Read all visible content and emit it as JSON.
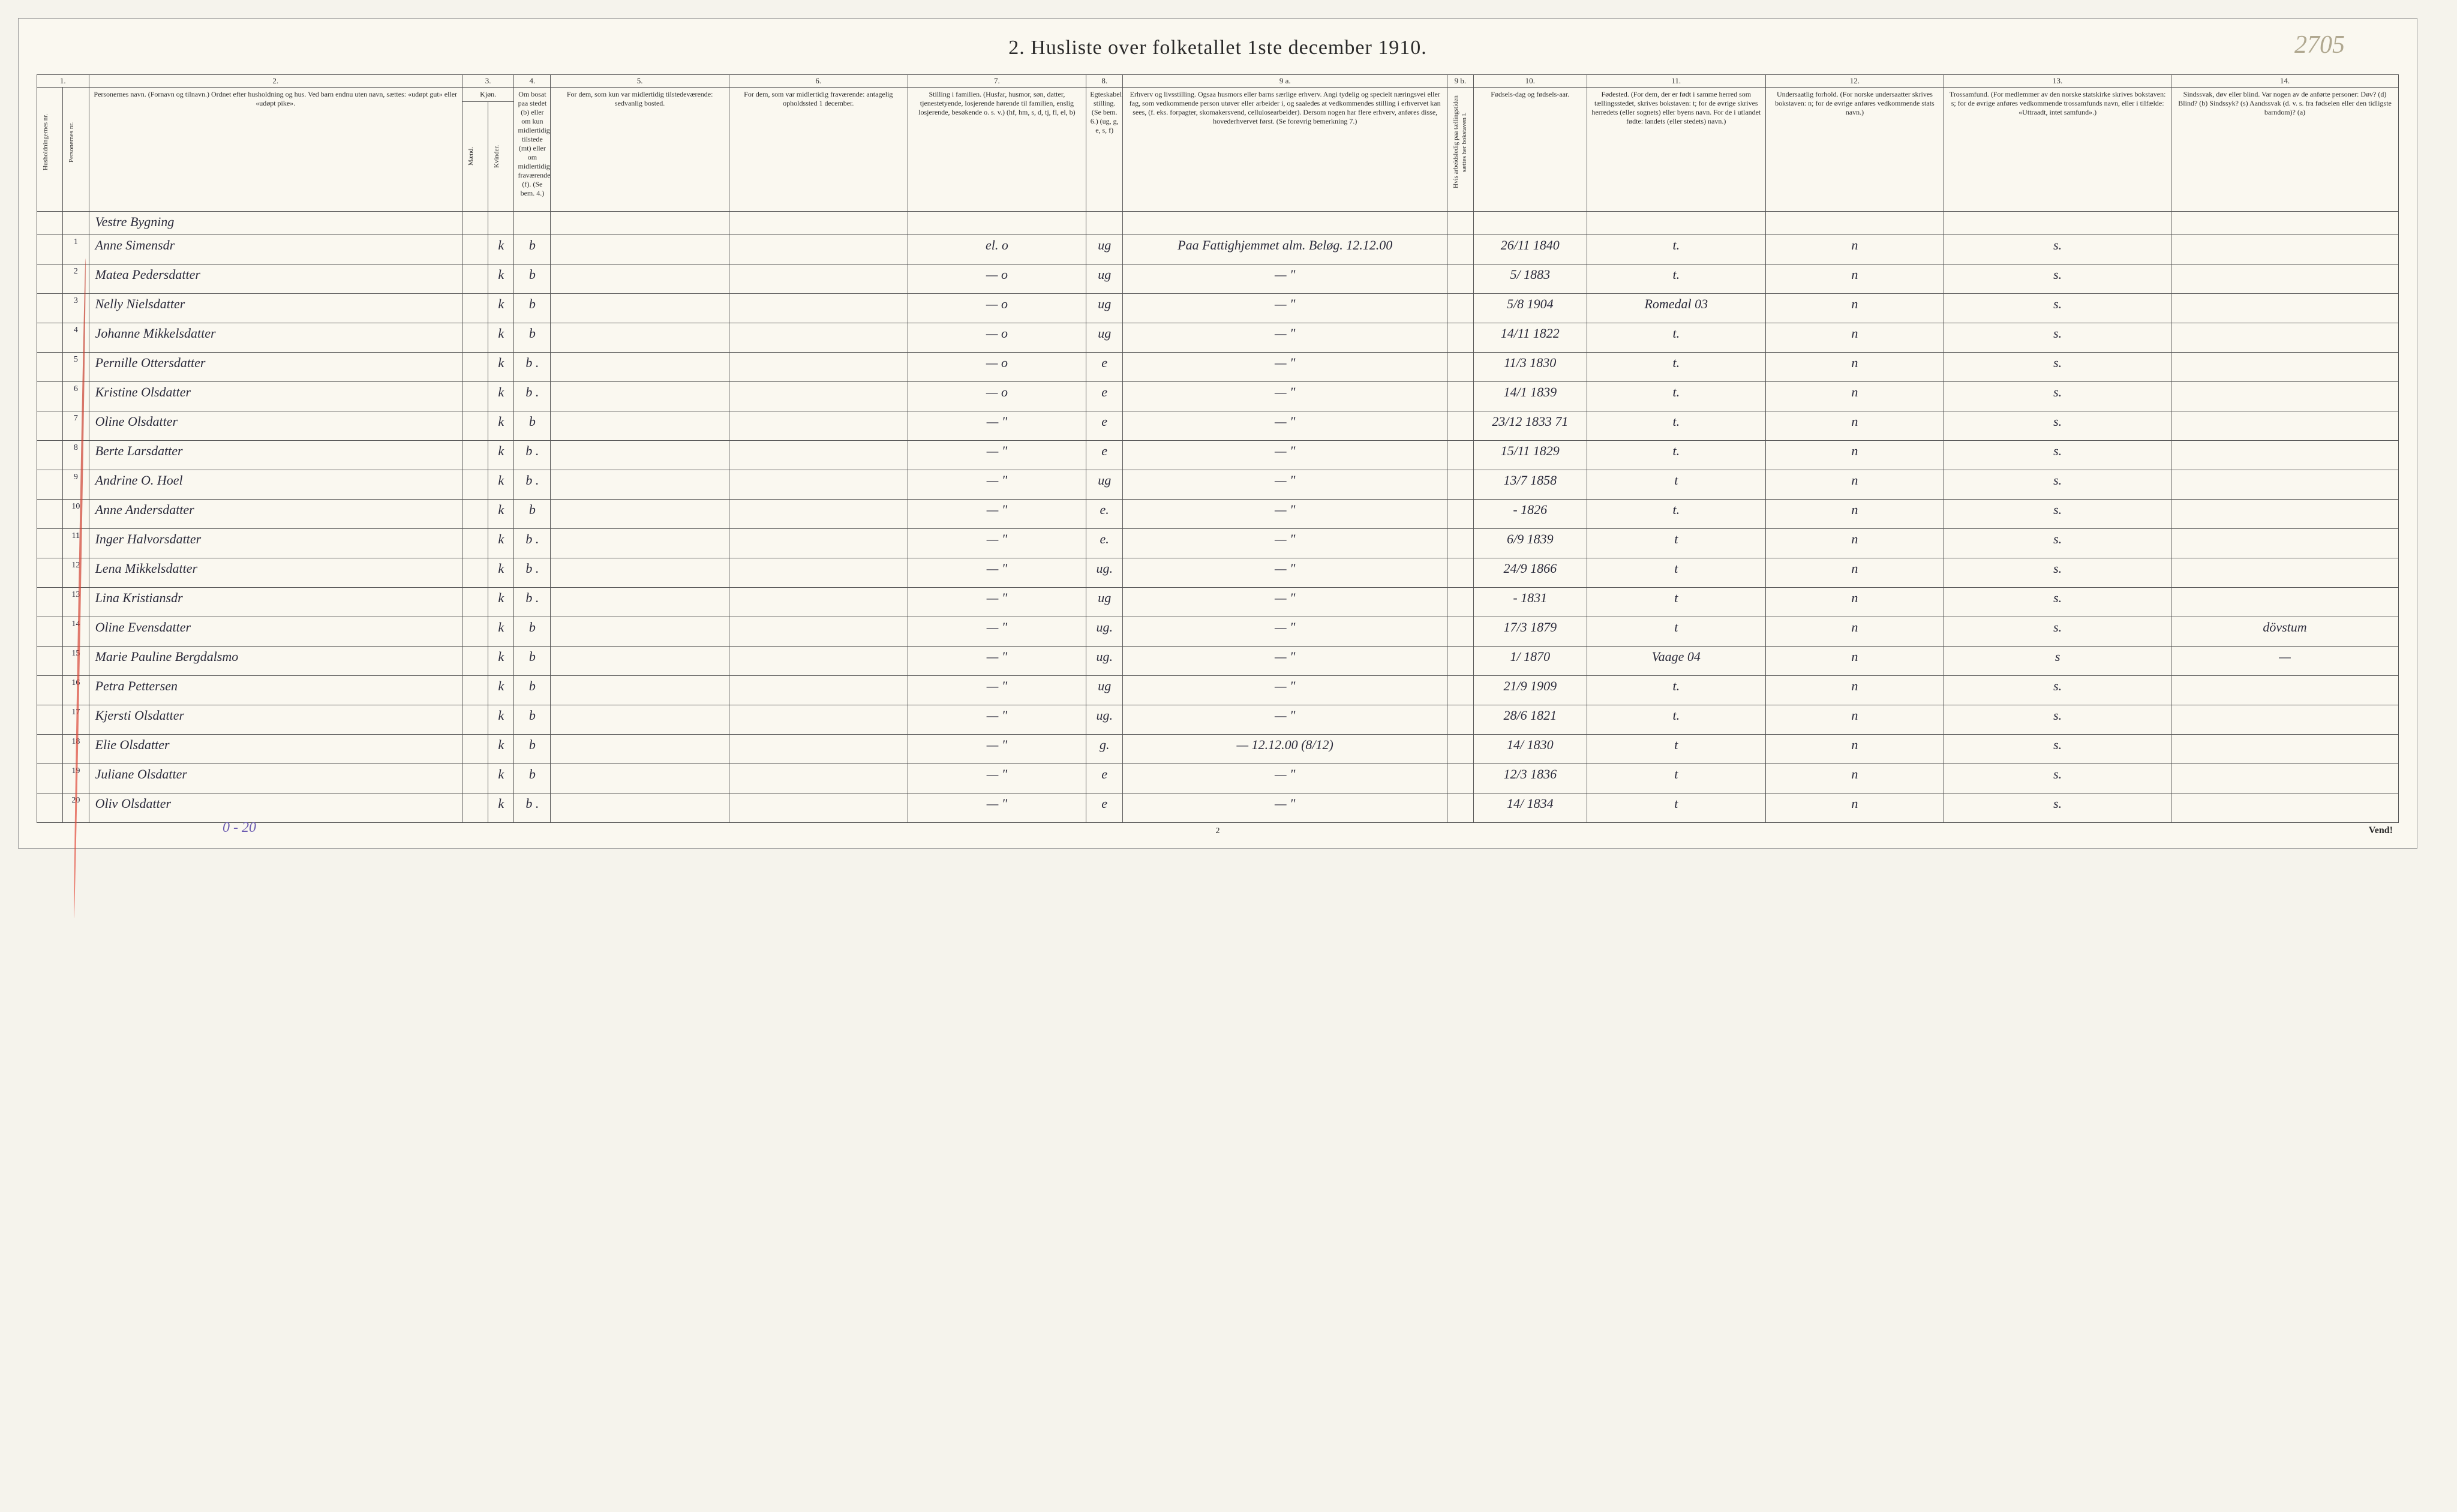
{
  "pencil_note": "2705",
  "title": "2. Husliste over folketallet 1ste december 1910.",
  "col_numbers": [
    "1.",
    "2.",
    "3.",
    "4.",
    "5.",
    "6.",
    "7.",
    "8.",
    "9 a.",
    "9 b.",
    "10.",
    "11.",
    "12.",
    "13.",
    "14."
  ],
  "headers": {
    "c1a": "Husholdningernes nr.",
    "c1b": "Personernes nr.",
    "c2": "Personernes navn.\n(Fornavn og tilnavn.)\nOrdnet efter husholdning og hus.\nVed barn endnu uten navn, sættes: «udøpt gut» eller «udøpt pike».",
    "c3": "Kjøn.",
    "c3m": "Mænd.",
    "c3k": "Kvinder.",
    "c4": "Om bosat paa stedet (b) eller om kun midlertidig tilstede (mt) eller om midlertidig fraværende (f). (Se bem. 4.)",
    "c5": "For dem, som kun var midlertidig tilstedeværende:\nsedvanlig bosted.",
    "c6": "For dem, som var midlertidig fraværende:\nantagelig opholdssted 1 december.",
    "c7": "Stilling i familien.\n(Husfar, husmor, søn, datter, tjenestetyende, losjerende hørende til familien, enslig losjerende, besøkende o. s. v.)\n(hf, hm, s, d, tj, fl, el, b)",
    "c8": "Egteskabelig stilling. (Se bem. 6.) (ug, g, e, s, f)",
    "c9a": "Erhverv og livsstilling.\nOgsaa husmors eller barns særlige erhverv. Angi tydelig og specielt næringsvei eller fag, som vedkommende person utøver eller arbeider i, og saaledes at vedkommendes stilling i erhvervet kan sees, (f. eks. forpagter, skomakersvend, cellulosearbeider). Dersom nogen har flere erhverv, anføres disse, hovederhvervet først. (Se forøvrig bemerkning 7.)",
    "c9b": "Hvis arbeidsledig paa tællingstiden sættes her bokstaven l.",
    "c10": "Fødsels-dag og fødsels-aar.",
    "c11": "Fødested.\n(For dem, der er født i samme herred som tællingsstedet, skrives bokstaven: t; for de øvrige skrives herredets (eller sognets) eller byens navn. For de i utlandet fødte: landets (eller stedets) navn.)",
    "c12": "Undersaatlig forhold.\n(For norske undersaatter skrives bokstaven: n; for de øvrige anføres vedkommende stats navn.)",
    "c13": "Trossamfund.\n(For medlemmer av den norske statskirke skrives bokstaven: s; for de øvrige anføres vedkommende trossamfunds navn, eller i tilfælde: «Uttraadt, intet samfund».)",
    "c14": "Sindssvak, døv eller blind.\nVar nogen av de anførte personer:\nDøv? (d)\nBlind? (b)\nSindssyk? (s)\nAandssvak (d. v. s. fra fødselen eller den tidligste barndom)? (a)"
  },
  "section_label": "Vestre Bygning",
  "rows": [
    {
      "n": "1",
      "name": "Anne Simensdr",
      "m": "",
      "k": "k",
      "b": "b",
      "c5": "",
      "c6": "",
      "c7": "el. o",
      "c8": "ug",
      "c9a": "Paa Fattighjemmet alm. Beløg. 12.12.00",
      "c9b": "",
      "c10": "26/11 1840",
      "c11": "t.",
      "c12": "n",
      "c13": "s.",
      "c14": ""
    },
    {
      "n": "2",
      "name": "Matea Pedersdatter",
      "m": "",
      "k": "k",
      "b": "b",
      "c5": "",
      "c6": "",
      "c7": "—  o",
      "c8": "ug",
      "c9a": "—  \"",
      "c9b": "",
      "c10": "5/ 1883",
      "c11": "t.",
      "c12": "n",
      "c13": "s.",
      "c14": ""
    },
    {
      "n": "3",
      "name": "Nelly Nielsdatter",
      "m": "",
      "k": "k",
      "b": "b",
      "c5": "",
      "c6": "",
      "c7": "—  o",
      "c8": "ug",
      "c9a": "—  \"",
      "c9b": "",
      "c10": "5/8 1904",
      "c11": "Romedal 03",
      "c12": "n",
      "c13": "s.",
      "c14": ""
    },
    {
      "n": "4",
      "name": "Johanne Mikkelsdatter",
      "m": "",
      "k": "k",
      "b": "b",
      "c5": "",
      "c6": "",
      "c7": "—  o",
      "c8": "ug",
      "c9a": "—  \"",
      "c9b": "",
      "c10": "14/11 1822",
      "c11": "t.",
      "c12": "n",
      "c13": "s.",
      "c14": ""
    },
    {
      "n": "5",
      "name": "Pernille Ottersdatter",
      "m": "",
      "k": "k",
      "b": "b .",
      "c5": "",
      "c6": "",
      "c7": "—  o",
      "c8": "e",
      "c9a": "—  \"",
      "c9b": "",
      "c10": "11/3 1830",
      "c11": "t.",
      "c12": "n",
      "c13": "s.",
      "c14": ""
    },
    {
      "n": "6",
      "name": "Kristine Olsdatter",
      "m": "",
      "k": "k",
      "b": "b .",
      "c5": "",
      "c6": "",
      "c7": "—  o",
      "c8": "e",
      "c9a": "—  \"",
      "c9b": "",
      "c10": "14/1 1839",
      "c11": "t.",
      "c12": "n",
      "c13": "s.",
      "c14": ""
    },
    {
      "n": "7",
      "name": "Oline Olsdatter",
      "m": "",
      "k": "k",
      "b": "b",
      "c5": "",
      "c6": "",
      "c7": "—  \"",
      "c8": "e",
      "c9a": "—  \"",
      "c9b": "",
      "c10": "23/12 1833 71",
      "c11": "t.",
      "c12": "n",
      "c13": "s.",
      "c14": ""
    },
    {
      "n": "8",
      "name": "Berte Larsdatter",
      "m": "",
      "k": "k",
      "b": "b .",
      "c5": "",
      "c6": "",
      "c7": "—  \"",
      "c8": "e",
      "c9a": "—  \"",
      "c9b": "",
      "c10": "15/11 1829",
      "c11": "t.",
      "c12": "n",
      "c13": "s.",
      "c14": ""
    },
    {
      "n": "9",
      "name": "Andrine O. Hoel",
      "m": "",
      "k": "k",
      "b": "b .",
      "c5": "",
      "c6": "",
      "c7": "—  \"",
      "c8": "ug",
      "c9a": "—  \"",
      "c9b": "",
      "c10": "13/7 1858",
      "c11": "t",
      "c12": "n",
      "c13": "s.",
      "c14": ""
    },
    {
      "n": "10",
      "name": "Anne Andersdatter",
      "m": "",
      "k": "k",
      "b": "b",
      "c5": "",
      "c6": "",
      "c7": "—  \"",
      "c8": "e.",
      "c9a": "—  \"",
      "c9b": "",
      "c10": "- 1826",
      "c11": "t.",
      "c12": "n",
      "c13": "s.",
      "c14": ""
    },
    {
      "n": "11",
      "name": "Inger Halvorsdatter",
      "m": "",
      "k": "k",
      "b": "b .",
      "c5": "",
      "c6": "",
      "c7": "—  \"",
      "c8": "e.",
      "c9a": "—  \"",
      "c9b": "",
      "c10": "6/9 1839",
      "c11": "t",
      "c12": "n",
      "c13": "s.",
      "c14": ""
    },
    {
      "n": "12",
      "name": "Lena Mikkelsdatter",
      "m": "",
      "k": "k",
      "b": "b .",
      "c5": "",
      "c6": "",
      "c7": "—  \"",
      "c8": "ug.",
      "c9a": "—  \"",
      "c9b": "",
      "c10": "24/9 1866",
      "c11": "t",
      "c12": "n",
      "c13": "s.",
      "c14": ""
    },
    {
      "n": "13",
      "name": "Lina Kristiansdr",
      "m": "",
      "k": "k",
      "b": "b .",
      "c5": "",
      "c6": "",
      "c7": "—  \"",
      "c8": "ug",
      "c9a": "—  \"",
      "c9b": "",
      "c10": "- 1831",
      "c11": "t",
      "c12": "n",
      "c13": "s.",
      "c14": ""
    },
    {
      "n": "14",
      "name": "Oline Evensdatter",
      "m": "",
      "k": "k",
      "b": "b",
      "c5": "",
      "c6": "",
      "c7": "—  \"",
      "c8": "ug.",
      "c9a": "—  \"",
      "c9b": "",
      "c10": "17/3 1879",
      "c11": "t",
      "c12": "n",
      "c13": "s.",
      "c14": "dövstum"
    },
    {
      "n": "15",
      "name": "Marie Pauline Bergdalsmo",
      "m": "",
      "k": "k",
      "b": "b",
      "c5": "",
      "c6": "",
      "c7": "—  \"",
      "c8": "ug.",
      "c9a": "—  \"",
      "c9b": "",
      "c10": "1/ 1870",
      "c11": "Vaage 04",
      "c12": "n",
      "c13": "s",
      "c14": "—"
    },
    {
      "n": "16",
      "name": "Petra Pettersen",
      "m": "",
      "k": "k",
      "b": "b",
      "c5": "",
      "c6": "",
      "c7": "—  \"",
      "c8": "ug",
      "c9a": "—  \"",
      "c9b": "",
      "c10": "21/9 1909",
      "c11": "t.",
      "c12": "n",
      "c13": "s.",
      "c14": ""
    },
    {
      "n": "17",
      "name": "Kjersti Olsdatter",
      "m": "",
      "k": "k",
      "b": "b",
      "c5": "",
      "c6": "",
      "c7": "—  \"",
      "c8": "ug.",
      "c9a": "—  \"",
      "c9b": "",
      "c10": "28/6 1821",
      "c11": "t.",
      "c12": "n",
      "c13": "s.",
      "c14": ""
    },
    {
      "n": "18",
      "name": "Elie Olsdatter",
      "m": "",
      "k": "k",
      "b": "b",
      "c5": "",
      "c6": "",
      "c7": "—  \"",
      "c8": "g.",
      "c9a": "—  12.12.00 (8/12)",
      "c9b": "",
      "c10": "14/ 1830",
      "c11": "t",
      "c12": "n",
      "c13": "s.",
      "c14": ""
    },
    {
      "n": "19",
      "name": "Juliane Olsdatter",
      "m": "",
      "k": "k",
      "b": "b",
      "c5": "",
      "c6": "",
      "c7": "—  \"",
      "c8": "e",
      "c9a": "—  \"",
      "c9b": "",
      "c10": "12/3 1836",
      "c11": "t",
      "c12": "n",
      "c13": "s.",
      "c14": ""
    },
    {
      "n": "20",
      "name": "Oliv Olsdatter",
      "m": "",
      "k": "k",
      "b": "b .",
      "c5": "",
      "c6": "",
      "c7": "—  \"",
      "c8": "e",
      "c9a": "—  \"",
      "c9b": "",
      "c10": "14/ 1834",
      "c11": "t",
      "c12": "n",
      "c13": "s.",
      "c14": ""
    }
  ],
  "footer_left": "0 - 20",
  "footer_center": "2",
  "footer_right": "Vend!"
}
